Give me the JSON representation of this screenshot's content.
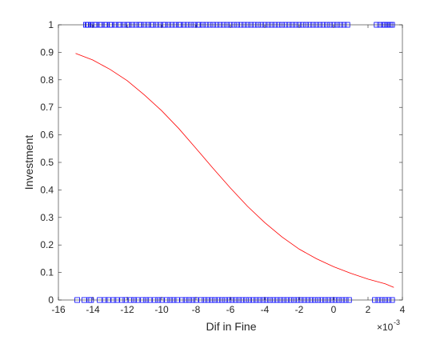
{
  "chart_data": {
    "type": "scatter",
    "xlabel": "Dif in Fine",
    "ylabel": "Investment",
    "x_exponent_label": "×10",
    "x_exponent_power": "-3",
    "x_scale_factor": 0.001,
    "xlim": [
      -16,
      4
    ],
    "ylim": [
      0,
      1
    ],
    "xticks": [
      -16,
      -14,
      -12,
      -10,
      -8,
      -6,
      -4,
      -2,
      0,
      2,
      4
    ],
    "yticks": [
      0,
      0.1,
      0.2,
      0.3,
      0.4,
      0.5,
      0.6,
      0.7,
      0.8,
      0.9,
      1
    ],
    "grid": false,
    "legend": "none",
    "series": [
      {
        "kind": "points",
        "marker": "square",
        "y": 1,
        "x": [
          -14.4,
          -14.3,
          -14.25,
          -14.1,
          -13.9,
          -13.8,
          -13.6,
          -13.5,
          -13.3,
          -13.2,
          -13.0,
          -12.9,
          -12.7,
          -12.5,
          -12.4,
          -12.2,
          -12.0,
          -11.9,
          -11.7,
          -11.5,
          -11.3,
          -11.2,
          -11.0,
          -10.8,
          -10.6,
          -10.5,
          -10.3,
          -10.1,
          -9.9,
          -9.8,
          -9.6,
          -9.4,
          -9.2,
          -9.0,
          -8.9,
          -8.7,
          -8.5,
          -8.3,
          -8.1,
          -7.9,
          -7.8,
          -7.6,
          -7.4,
          -7.2,
          -7.0,
          -6.8,
          -6.6,
          -6.4,
          -6.2,
          -6.0,
          -5.8,
          -5.6,
          -5.4,
          -5.2,
          -5.0,
          -4.8,
          -4.6,
          -4.4,
          -4.2,
          -4.0,
          -3.8,
          -3.6,
          -3.4,
          -3.2,
          -3.0,
          -2.8,
          -2.6,
          -2.4,
          -2.2,
          -2.0,
          -1.8,
          -1.6,
          -1.4,
          -1.2,
          -1.0,
          -0.8,
          -0.6,
          -0.4,
          -0.2,
          0.0,
          0.2,
          0.4,
          0.6,
          0.8,
          2.5,
          2.7,
          2.9,
          3.0,
          3.1,
          3.2,
          3.3,
          3.4
        ],
        "color": "#0000ff"
      },
      {
        "kind": "points",
        "marker": "square",
        "y": 0,
        "x": [
          -14.9,
          -14.5,
          -14.2,
          -14.1,
          -13.6,
          -13.3,
          -13.1,
          -12.8,
          -12.6,
          -12.3,
          -12.1,
          -11.8,
          -11.6,
          -11.4,
          -11.1,
          -10.9,
          -10.7,
          -10.4,
          -10.2,
          -10.0,
          -9.7,
          -9.5,
          -9.3,
          -9.1,
          -8.8,
          -8.6,
          -8.4,
          -8.2,
          -8.0,
          -7.7,
          -7.5,
          -7.3,
          -7.1,
          -6.9,
          -6.7,
          -6.5,
          -6.3,
          -6.1,
          -5.9,
          -5.7,
          -5.5,
          -5.3,
          -5.1,
          -4.9,
          -4.7,
          -4.5,
          -4.3,
          -4.1,
          -3.9,
          -3.7,
          -3.5,
          -3.3,
          -3.1,
          -2.9,
          -2.7,
          -2.5,
          -2.3,
          -2.1,
          -1.9,
          -1.7,
          -1.5,
          -1.3,
          -1.1,
          -0.9,
          -0.7,
          -0.5,
          -0.3,
          -0.1,
          0.1,
          0.3,
          0.5,
          0.7,
          0.9,
          2.4,
          2.6,
          2.8,
          3.0,
          3.2,
          3.4
        ],
        "color": "#0000ff"
      },
      {
        "kind": "line",
        "x": [
          -15,
          -14,
          -13,
          -12,
          -11,
          -10,
          -9,
          -8,
          -7,
          -6,
          -5,
          -4,
          -3,
          -2,
          -1,
          0,
          1,
          2,
          3,
          3.5
        ],
        "y": [
          0.896,
          0.872,
          0.838,
          0.797,
          0.745,
          0.688,
          0.623,
          0.551,
          0.478,
          0.407,
          0.34,
          0.281,
          0.229,
          0.185,
          0.15,
          0.121,
          0.097,
          0.076,
          0.059,
          0.046
        ],
        "color": "#ff0000"
      }
    ],
    "colors": {
      "axis": "#262626",
      "background": "#ffffff"
    }
  }
}
